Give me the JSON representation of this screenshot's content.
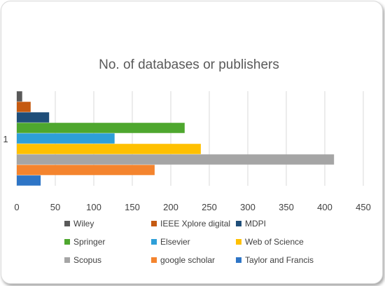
{
  "chart_data": {
    "type": "bar",
    "orientation": "horizontal",
    "title": "No. of databases or publishers",
    "categories": [
      "1"
    ],
    "xlim": [
      0,
      450
    ],
    "x_ticks": [
      0,
      50,
      100,
      150,
      200,
      250,
      300,
      350,
      400,
      450
    ],
    "grid": "vertical",
    "legend_position": "bottom",
    "series": [
      {
        "name": "Wiley",
        "values": [
          7
        ],
        "color": "#595959"
      },
      {
        "name": "IEEE Xplore digital",
        "values": [
          18
        ],
        "color": "#c55a11"
      },
      {
        "name": "MDPI",
        "values": [
          42
        ],
        "color": "#1f4e79"
      },
      {
        "name": "Springer",
        "values": [
          218
        ],
        "color": "#4ea72e"
      },
      {
        "name": "Elsevier",
        "values": [
          127
        ],
        "color": "#2e9fd8"
      },
      {
        "name": "Web of Science",
        "values": [
          239
        ],
        "color": "#ffc000"
      },
      {
        "name": "Scopus",
        "values": [
          412
        ],
        "color": "#a5a5a5"
      },
      {
        "name": "google scholar",
        "values": [
          179
        ],
        "color": "#f4842e"
      },
      {
        "name": "Taylor and Francis",
        "values": [
          31
        ],
        "color": "#2e75c6"
      }
    ]
  }
}
